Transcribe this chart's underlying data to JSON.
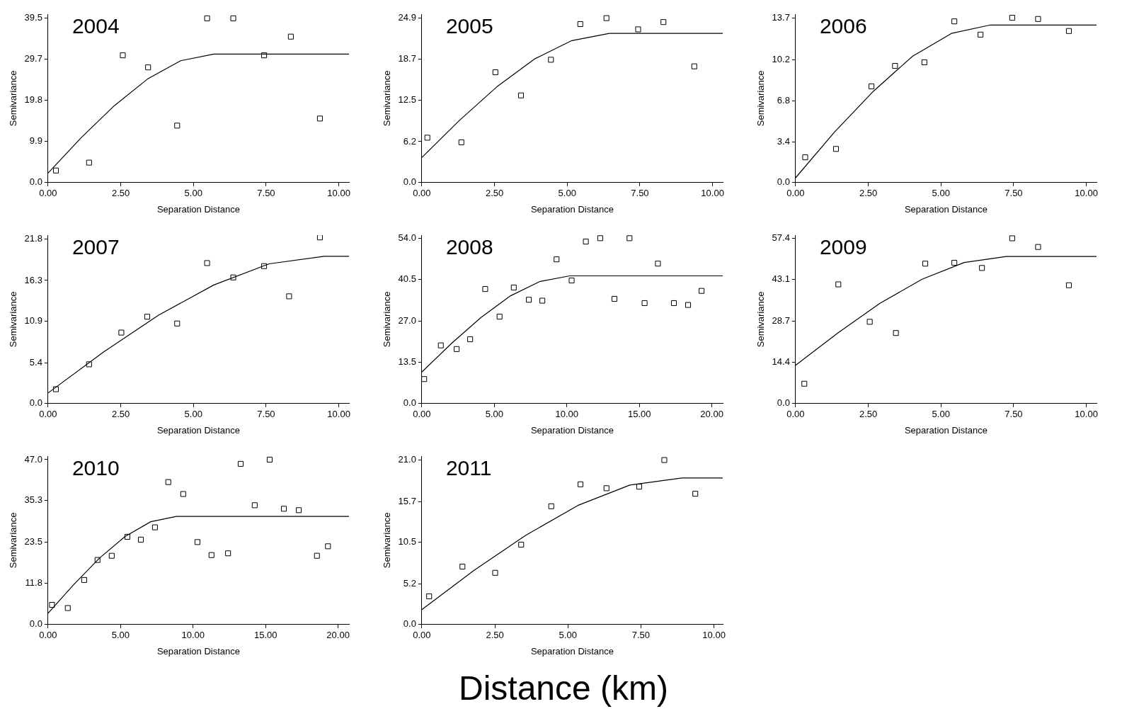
{
  "chart_data": [
    {
      "type": "scatter",
      "title": "2004",
      "xlabel": "Separation Distance",
      "ylabel": "Semivariance",
      "marker": "square",
      "legend": false,
      "grid": false,
      "xlim": [
        0,
        10.35
      ],
      "ylim": [
        0,
        40.5
      ],
      "xticks": [
        {
          "value": 0,
          "label": "0.00"
        },
        {
          "value": 2.5,
          "label": "2.50"
        },
        {
          "value": 5,
          "label": "5.00"
        },
        {
          "value": 7.5,
          "label": "7.50"
        },
        {
          "value": 10,
          "label": "10.00"
        }
      ],
      "yticks": [
        {
          "value": 0,
          "label": "0.0"
        },
        {
          "value": 9.9,
          "label": "9.9"
        },
        {
          "value": 19.8,
          "label": "19.8"
        },
        {
          "value": 29.7,
          "label": "29.7"
        },
        {
          "value": 39.5,
          "label": "39.5"
        }
      ],
      "series": [
        {
          "type": "scatter",
          "color": "#000000",
          "x": [
            0.27,
            1.41,
            2.57,
            3.44,
            4.44,
            5.47,
            6.37,
            7.43,
            8.35,
            9.35
          ],
          "values": [
            2.9,
            4.8,
            30.6,
            27.7,
            13.7,
            39.5,
            39.5,
            30.6,
            35.1,
            15.4
          ]
        },
        {
          "type": "line",
          "marker": "none",
          "color": "#000000",
          "x": [
            0,
            1.14,
            2.28,
            3.42,
            4.56,
            5.7,
            10.35
          ],
          "values": [
            2.3,
            10.8,
            18.5,
            24.9,
            29.3,
            30.9,
            30.9
          ]
        }
      ]
    },
    {
      "type": "scatter",
      "title": "2005",
      "xlabel": "Separation Distance",
      "ylabel": "Semivariance",
      "marker": "square",
      "legend": false,
      "grid": false,
      "xlim": [
        0,
        10.35
      ],
      "ylim": [
        0,
        25.5
      ],
      "xticks": [
        {
          "value": 0,
          "label": "0.00"
        },
        {
          "value": 2.5,
          "label": "2.50"
        },
        {
          "value": 5,
          "label": "5.00"
        },
        {
          "value": 7.5,
          "label": "7.50"
        },
        {
          "value": 10,
          "label": "10.00"
        }
      ],
      "yticks": [
        {
          "value": 0,
          "label": "0.0"
        },
        {
          "value": 6.2,
          "label": "6.2"
        },
        {
          "value": 12.5,
          "label": "12.5"
        },
        {
          "value": 18.7,
          "label": "18.7"
        },
        {
          "value": 24.9,
          "label": "24.9"
        }
      ],
      "series": [
        {
          "type": "scatter",
          "color": "#000000",
          "x": [
            0.19,
            1.36,
            2.53,
            3.41,
            4.44,
            5.45,
            6.35,
            7.44,
            8.31,
            9.37
          ],
          "values": [
            6.8,
            6.1,
            16.7,
            13.2,
            18.6,
            24.0,
            24.9,
            23.2,
            24.3,
            17.6
          ]
        },
        {
          "type": "line",
          "marker": "none",
          "color": "#000000",
          "x": [
            0,
            1.29,
            2.58,
            3.87,
            5.16,
            6.45,
            10.35
          ],
          "values": [
            3.8,
            9.4,
            14.5,
            18.7,
            21.5,
            22.6,
            22.6
          ]
        }
      ]
    },
    {
      "type": "scatter",
      "title": "2006",
      "xlabel": "Separation Distance",
      "ylabel": "Semivariance",
      "marker": "square",
      "legend": false,
      "grid": false,
      "xlim": [
        0,
        10.35
      ],
      "ylim": [
        0,
        14.0
      ],
      "xticks": [
        {
          "value": 0,
          "label": "0.00"
        },
        {
          "value": 2.5,
          "label": "2.50"
        },
        {
          "value": 5,
          "label": "5.00"
        },
        {
          "value": 7.5,
          "label": "7.50"
        },
        {
          "value": 10,
          "label": "10.00"
        }
      ],
      "yticks": [
        {
          "value": 0,
          "label": "0.0"
        },
        {
          "value": 3.4,
          "label": "3.4"
        },
        {
          "value": 6.8,
          "label": "6.8"
        },
        {
          "value": 10.2,
          "label": "10.2"
        },
        {
          "value": 13.7,
          "label": "13.7"
        }
      ],
      "series": [
        {
          "type": "scatter",
          "color": "#000000",
          "x": [
            0.33,
            1.39,
            2.61,
            3.42,
            4.43,
            5.46,
            6.36,
            7.45,
            8.34,
            9.4
          ],
          "values": [
            2.1,
            2.8,
            8.0,
            9.7,
            10.0,
            13.4,
            12.3,
            13.7,
            13.6,
            12.6
          ]
        },
        {
          "type": "line",
          "marker": "none",
          "color": "#000000",
          "x": [
            0,
            1.34,
            2.68,
            4.02,
            5.36,
            6.7,
            10.35
          ],
          "values": [
            0.4,
            4.2,
            7.6,
            10.5,
            12.4,
            13.1,
            13.1
          ]
        }
      ]
    },
    {
      "type": "scatter",
      "title": "2007",
      "xlabel": "Separation Distance",
      "ylabel": "Semivariance",
      "marker": "square",
      "legend": false,
      "grid": false,
      "xlim": [
        0,
        10.35
      ],
      "ylim": [
        0,
        22.3
      ],
      "xticks": [
        {
          "value": 0,
          "label": "0.00"
        },
        {
          "value": 2.5,
          "label": "2.50"
        },
        {
          "value": 5,
          "label": "5.00"
        },
        {
          "value": 7.5,
          "label": "7.50"
        },
        {
          "value": 10,
          "label": "10.00"
        }
      ],
      "yticks": [
        {
          "value": 0,
          "label": "0.0"
        },
        {
          "value": 5.4,
          "label": "5.4"
        },
        {
          "value": 10.9,
          "label": "10.9"
        },
        {
          "value": 16.3,
          "label": "16.3"
        },
        {
          "value": 21.8,
          "label": "21.8"
        }
      ],
      "series": [
        {
          "type": "scatter",
          "color": "#000000",
          "x": [
            0.27,
            1.41,
            2.52,
            3.41,
            4.44,
            5.47,
            6.37,
            7.43,
            8.29,
            9.35
          ],
          "values": [
            1.9,
            5.2,
            9.4,
            11.5,
            10.6,
            18.6,
            16.7,
            18.2,
            14.2,
            22.0
          ]
        },
        {
          "type": "line",
          "marker": "none",
          "color": "#000000",
          "x": [
            0,
            1.9,
            3.8,
            5.7,
            7.6,
            9.5,
            10.35
          ],
          "values": [
            1.4,
            6.8,
            11.7,
            15.7,
            18.5,
            19.5,
            19.5
          ]
        }
      ]
    },
    {
      "type": "scatter",
      "title": "2008",
      "xlabel": "Separation Distance",
      "ylabel": "Semivariance",
      "marker": "square",
      "legend": false,
      "grid": false,
      "xlim": [
        0,
        20.75
      ],
      "ylim": [
        0,
        55.0
      ],
      "xticks": [
        {
          "value": 0,
          "label": "0.00"
        },
        {
          "value": 5,
          "label": "5.00"
        },
        {
          "value": 10,
          "label": "10.00"
        },
        {
          "value": 15,
          "label": "15.00"
        },
        {
          "value": 20,
          "label": "20.00"
        }
      ],
      "yticks": [
        {
          "value": 0,
          "label": "0.0"
        },
        {
          "value": 13.5,
          "label": "13.5"
        },
        {
          "value": 27,
          "label": "27.0"
        },
        {
          "value": 40.5,
          "label": "40.5"
        },
        {
          "value": 54,
          "label": "54.0"
        }
      ],
      "series": [
        {
          "type": "scatter",
          "color": "#000000",
          "x": [
            0.16,
            1.31,
            2.4,
            3.33,
            4.37,
            5.36,
            6.34,
            7.38,
            8.31,
            9.29,
            10.33,
            11.31,
            12.3,
            13.28,
            14.32,
            15.36,
            16.28,
            17.38,
            18.36,
            19.29
          ],
          "values": [
            8.0,
            19.0,
            17.8,
            21.0,
            37.4,
            28.4,
            37.9,
            33.9,
            33.6,
            47.1,
            40.2,
            52.9,
            54.0,
            34.2,
            54.0,
            32.8,
            45.7,
            32.8,
            32.2,
            36.8
          ]
        },
        {
          "type": "line",
          "marker": "none",
          "color": "#000000",
          "x": [
            0,
            2.04,
            4.08,
            6.12,
            8.16,
            10.2,
            20.75
          ],
          "values": [
            10.3,
            19.6,
            28.1,
            35.2,
            39.9,
            41.7,
            41.7
          ]
        }
      ]
    },
    {
      "type": "scatter",
      "title": "2009",
      "xlabel": "Separation Distance",
      "ylabel": "Semivariance",
      "marker": "square",
      "legend": false,
      "grid": false,
      "xlim": [
        0,
        10.35
      ],
      "ylim": [
        0,
        58.5
      ],
      "xticks": [
        {
          "value": 0,
          "label": "0.00"
        },
        {
          "value": 2.5,
          "label": "2.50"
        },
        {
          "value": 5,
          "label": "5.00"
        },
        {
          "value": 7.5,
          "label": "7.50"
        },
        {
          "value": 10,
          "label": "10.00"
        }
      ],
      "yticks": [
        {
          "value": 0,
          "label": "0.0"
        },
        {
          "value": 14.4,
          "label": "14.4"
        },
        {
          "value": 28.7,
          "label": "28.7"
        },
        {
          "value": 43.1,
          "label": "43.1"
        },
        {
          "value": 57.4,
          "label": "57.4"
        }
      ],
      "series": [
        {
          "type": "scatter",
          "color": "#000000",
          "x": [
            0.3,
            1.47,
            2.55,
            3.45,
            4.46,
            5.46,
            6.41,
            7.45,
            8.34,
            9.4
          ],
          "values": [
            6.9,
            41.4,
            28.4,
            24.5,
            48.6,
            48.9,
            47.1,
            57.4,
            54.4,
            41.1
          ]
        },
        {
          "type": "line",
          "marker": "none",
          "color": "#000000",
          "x": [
            0,
            1.45,
            2.9,
            4.35,
            5.8,
            7.25,
            10.35
          ],
          "values": [
            13.3,
            24.5,
            34.8,
            43.2,
            49.0,
            51.1,
            51.1
          ]
        }
      ]
    },
    {
      "type": "scatter",
      "title": "2010",
      "xlabel": "Separation Distance",
      "ylabel": "Semivariance",
      "marker": "square",
      "legend": false,
      "grid": false,
      "xlim": [
        0,
        20.75
      ],
      "ylim": [
        0,
        48.0
      ],
      "xticks": [
        {
          "value": 0,
          "label": "0.00"
        },
        {
          "value": 5,
          "label": "5.00"
        },
        {
          "value": 10,
          "label": "10.00"
        },
        {
          "value": 15,
          "label": "15.00"
        },
        {
          "value": 20,
          "label": "20.00"
        }
      ],
      "yticks": [
        {
          "value": 0,
          "label": "0.0"
        },
        {
          "value": 11.8,
          "label": "11.8"
        },
        {
          "value": 23.5,
          "label": "23.5"
        },
        {
          "value": 35.3,
          "label": "35.3"
        },
        {
          "value": 47,
          "label": "47.0"
        }
      ],
      "series": [
        {
          "type": "scatter",
          "color": "#000000",
          "x": [
            0.27,
            1.36,
            2.49,
            3.41,
            4.39,
            5.47,
            6.4,
            7.37,
            8.29,
            9.32,
            10.3,
            11.27,
            12.41,
            13.28,
            14.25,
            15.28,
            16.26,
            17.29,
            18.54,
            19.3
          ],
          "values": [
            5.6,
            4.7,
            12.7,
            18.4,
            19.6,
            25.0,
            24.2,
            27.7,
            40.6,
            37.2,
            23.5,
            19.8,
            20.3,
            45.8,
            34.0,
            47.0,
            33.0,
            32.6,
            19.6,
            22.3
          ]
        },
        {
          "type": "line",
          "marker": "none",
          "color": "#000000",
          "x": [
            0,
            1.77,
            3.54,
            5.31,
            7.08,
            8.85,
            20.75
          ],
          "values": [
            3.2,
            11.4,
            18.9,
            25.1,
            29.3,
            30.8,
            30.8
          ]
        }
      ]
    },
    {
      "type": "scatter",
      "title": "2011",
      "xlabel": "Separation Distance",
      "ylabel": "Semivariance",
      "marker": "square",
      "legend": false,
      "grid": false,
      "xlim": [
        0,
        10.3
      ],
      "ylim": [
        0,
        21.5
      ],
      "xticks": [
        {
          "value": 0,
          "label": "0.00"
        },
        {
          "value": 2.5,
          "label": "2.50"
        },
        {
          "value": 5,
          "label": "5.00"
        },
        {
          "value": 7.5,
          "label": "7.50"
        },
        {
          "value": 10,
          "label": "10.00"
        }
      ],
      "yticks": [
        {
          "value": 0,
          "label": "0.0"
        },
        {
          "value": 5.2,
          "label": "5.2"
        },
        {
          "value": 10.5,
          "label": "10.5"
        },
        {
          "value": 15.7,
          "label": "15.7"
        },
        {
          "value": 21,
          "label": "21.0"
        }
      ],
      "series": [
        {
          "type": "scatter",
          "color": "#000000",
          "x": [
            0.25,
            1.39,
            2.51,
            3.4,
            4.43,
            5.43,
            6.32,
            7.44,
            8.3,
            9.36
          ],
          "values": [
            3.6,
            7.4,
            6.6,
            10.2,
            15.1,
            17.9,
            17.4,
            17.6,
            21.0,
            16.7
          ]
        },
        {
          "type": "line",
          "marker": "none",
          "color": "#000000",
          "x": [
            0,
            1.78,
            3.56,
            5.34,
            7.12,
            8.9,
            10.3
          ],
          "values": [
            1.9,
            6.9,
            11.4,
            15.2,
            17.8,
            18.7,
            18.7
          ]
        }
      ]
    },
    {
      "type": "other",
      "title": "Distance (km)"
    }
  ]
}
